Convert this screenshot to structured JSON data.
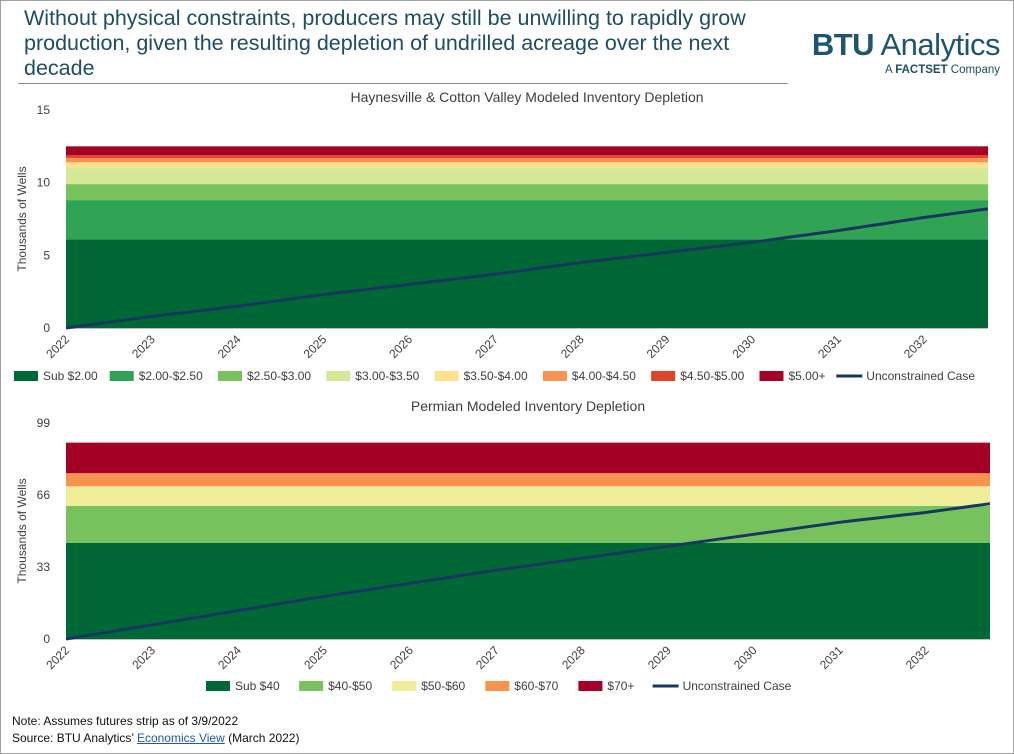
{
  "headline": "Without physical constraints, producers may still be unwilling to rapidly grow production, given the resulting depletion of undrilled acreage over the next decade",
  "brand": {
    "name_bold": "BTU",
    "name_rest": " Analytics",
    "sub_prefix": "A ",
    "sub_bold": "FACTSET",
    "sub_suffix": " Company",
    "color": "#1d5570"
  },
  "notes": {
    "note": "Note:  Assumes futures strip as of 3/9/2022",
    "source_prefix": "Source: BTU Analytics’ ",
    "source_link": "Economics View",
    "source_suffix": " (March 2022)"
  },
  "chart_data": [
    {
      "type": "area",
      "title": "Haynesville & Cotton Valley Modeled Inventory Depletion",
      "ylabel": "Thousands of Wells",
      "ylim": [
        0,
        15
      ],
      "yticks": [
        0,
        5,
        10,
        15
      ],
      "xlim": [
        2022,
        2032.75
      ],
      "xticks": [
        "2022",
        "2023",
        "2024",
        "2025",
        "2026",
        "2027",
        "2028",
        "2029",
        "2030",
        "2031",
        "2032"
      ],
      "grid": false,
      "legend_position": "bottom",
      "bands": [
        {
          "name": "Sub $2.00",
          "from": 0,
          "to": 6.1,
          "color": "#006837"
        },
        {
          "name": "$2.00-$2.50",
          "from": 6.1,
          "to": 8.8,
          "color": "#31a354"
        },
        {
          "name": "$2.50-$3.00",
          "from": 8.8,
          "to": 9.9,
          "color": "#78c25e"
        },
        {
          "name": "$3.00-$3.50",
          "from": 9.9,
          "to": 11.0,
          "color": "#d4e897"
        },
        {
          "name": "$3.50-$4.00",
          "from": 11.0,
          "to": 11.4,
          "color": "#fce28a"
        },
        {
          "name": "$4.00-$4.50",
          "from": 11.4,
          "to": 11.7,
          "color": "#f8934f"
        },
        {
          "name": "$4.50-$5.00",
          "from": 11.7,
          "to": 11.9,
          "color": "#e0452c"
        },
        {
          "name": "$5.00+",
          "from": 11.9,
          "to": 12.5,
          "color": "#a50026"
        }
      ],
      "line": {
        "name": "Unconstrained Case",
        "color": "#17375e",
        "x": [
          2022,
          2023,
          2024,
          2025,
          2026,
          2027,
          2028,
          2029,
          2030,
          2031,
          2032,
          2032.75
        ],
        "y": [
          0,
          0.8,
          1.5,
          2.3,
          3.0,
          3.7,
          4.5,
          5.2,
          5.9,
          6.7,
          7.6,
          8.2
        ]
      }
    },
    {
      "type": "area",
      "title": "Permian Modeled Inventory Depletion",
      "ylabel": "Thousands of Wells",
      "ylim": [
        0,
        99
      ],
      "yticks": [
        0,
        33,
        66,
        99
      ],
      "xlim": [
        2022,
        2032.75
      ],
      "xticks": [
        "2022",
        "2023",
        "2024",
        "2025",
        "2026",
        "2027",
        "2028",
        "2029",
        "2030",
        "2031",
        "2032"
      ],
      "grid": false,
      "legend_position": "bottom",
      "bands": [
        {
          "name": "Sub $40",
          "from": 0,
          "to": 44,
          "color": "#006837"
        },
        {
          "name": "$40-$50",
          "from": 44,
          "to": 61,
          "color": "#78c25e"
        },
        {
          "name": "$50-$60",
          "from": 61,
          "to": 70,
          "color": "#f0ed9a"
        },
        {
          "name": "$60-$70",
          "from": 70,
          "to": 76,
          "color": "#f8934f"
        },
        {
          "name": "$70+",
          "from": 76,
          "to": 90,
          "color": "#a50026"
        }
      ],
      "line": {
        "name": "Unconstrained Case",
        "color": "#17375e",
        "x": [
          2022,
          2023,
          2024,
          2025,
          2026,
          2027,
          2028,
          2029,
          2030,
          2031,
          2032,
          2032.75
        ],
        "y": [
          0,
          6.5,
          13,
          19.5,
          25.5,
          31.5,
          37,
          42.5,
          48,
          53.5,
          58,
          62
        ]
      }
    }
  ]
}
